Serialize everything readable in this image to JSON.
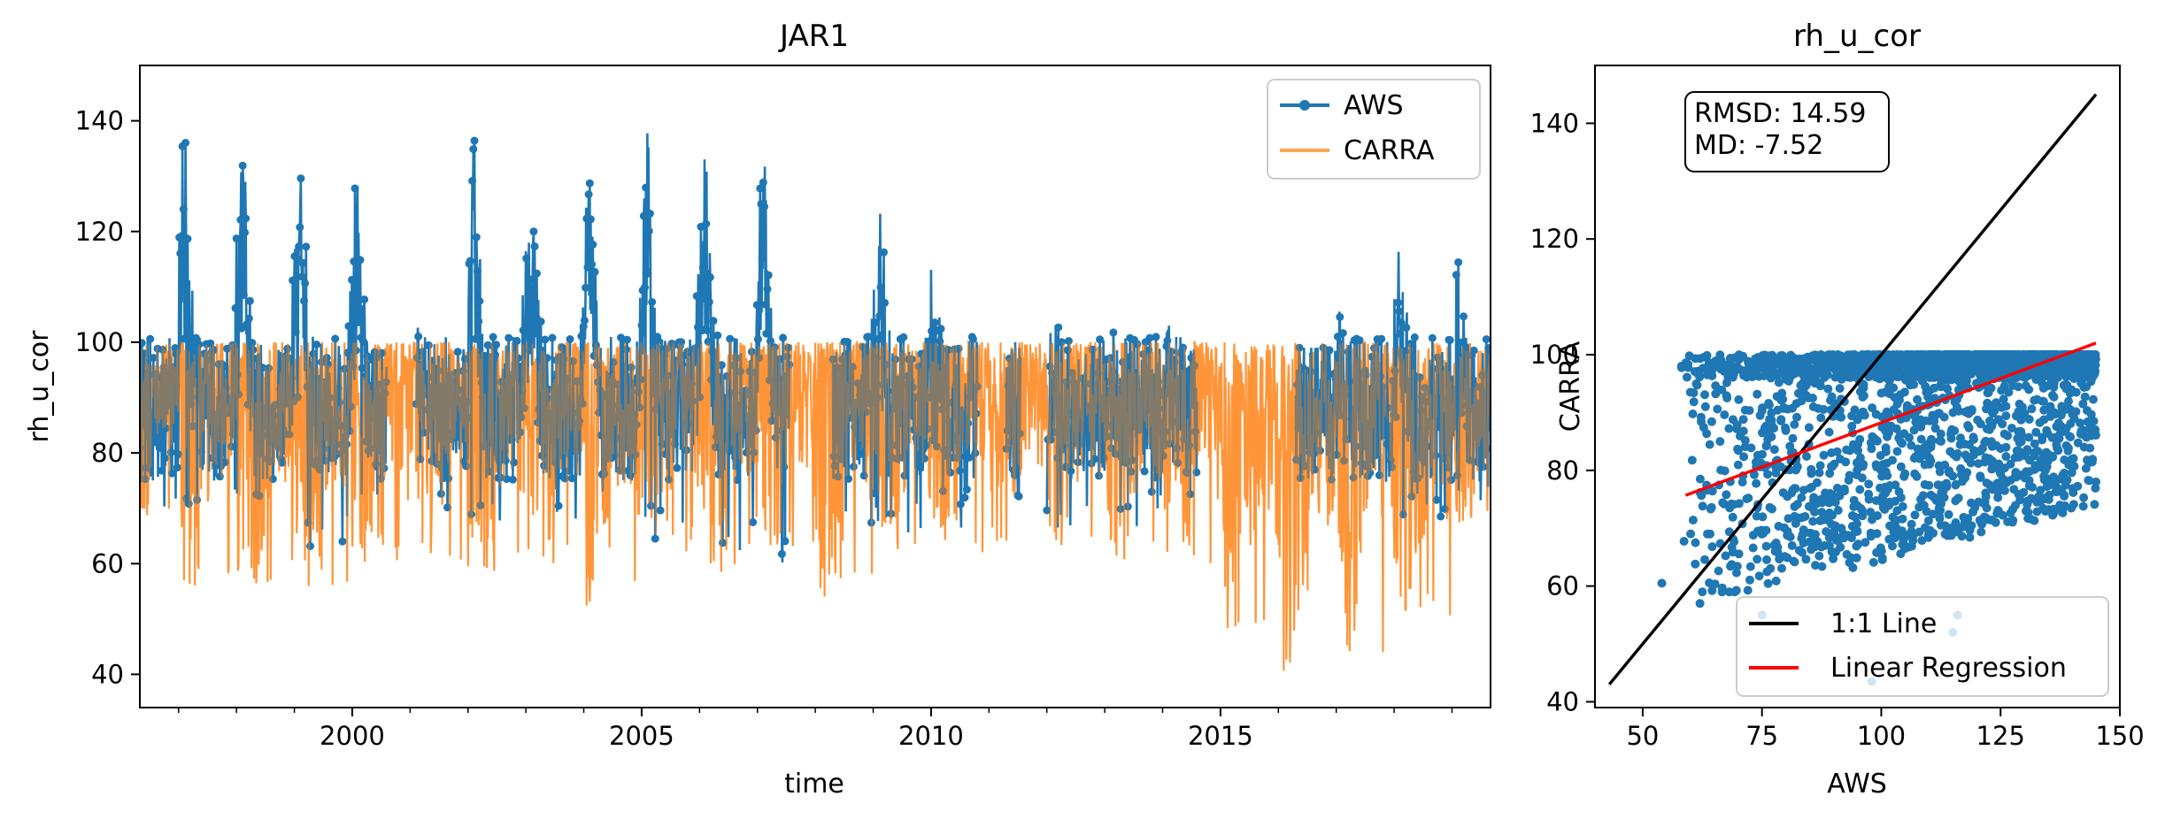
{
  "chart_data": [
    {
      "type": "line",
      "title": "JAR1",
      "xlabel": "time",
      "ylabel": "rh_u_cor",
      "xlim": [
        "1996-05-01",
        "2019-09-01"
      ],
      "ylim": [
        34,
        150
      ],
      "xticks": [
        "2000",
        "2005",
        "2010",
        "2015"
      ],
      "yticks": [
        40,
        60,
        80,
        100,
        120,
        140
      ],
      "legend": {
        "position": "top-right"
      },
      "colors": {
        "aws": "#1f77b4",
        "carra": "#ff7f0e"
      },
      "series": [
        {
          "name": "AWS",
          "marker": "circle",
          "yearly_envelope": [
            {
              "year": 1996,
              "min": 70,
              "max": 103
            },
            {
              "year": 1997,
              "min": 68,
              "max": 143
            },
            {
              "year": 1998,
              "min": 65,
              "max": 143
            },
            {
              "year": 1999,
              "min": 62,
              "max": 137
            },
            {
              "year": 2000,
              "min": 72,
              "max": 137
            },
            {
              "year": 2001,
              "min": 68,
              "max": 103
            },
            {
              "year": 2002,
              "min": 65,
              "max": 145
            },
            {
              "year": 2003,
              "min": 68,
              "max": 132
            },
            {
              "year": 2004,
              "min": 67,
              "max": 143
            },
            {
              "year": 2005,
              "min": 63,
              "max": 145
            },
            {
              "year": 2006,
              "min": 61,
              "max": 138
            },
            {
              "year": 2007,
              "min": 59,
              "max": 138
            },
            {
              "year": 2008,
              "min": 62,
              "max": 118
            },
            {
              "year": 2009,
              "min": 65,
              "max": 132
            },
            {
              "year": 2010,
              "min": 66,
              "max": 106
            },
            {
              "year": 2011,
              "min": 69,
              "max": 100
            },
            {
              "year": 2012,
              "min": 66,
              "max": 105
            },
            {
              "year": 2013,
              "min": 66,
              "max": 103
            },
            {
              "year": 2014,
              "min": 70,
              "max": 104
            },
            {
              "year": 2015,
              "min": 72,
              "max": 96
            },
            {
              "year": 2016,
              "min": 75,
              "max": 99
            },
            {
              "year": 2017,
              "min": 72,
              "max": 107
            },
            {
              "year": 2018,
              "min": 68,
              "max": 118
            },
            {
              "year": 2019,
              "min": 70,
              "max": 116
            }
          ]
        },
        {
          "name": "CARRA",
          "yearly_envelope": [
            {
              "year": 1996,
              "min": 66,
              "max": 100
            },
            {
              "year": 1997,
              "min": 55,
              "max": 100
            },
            {
              "year": 1998,
              "min": 56,
              "max": 100
            },
            {
              "year": 1999,
              "min": 55,
              "max": 100
            },
            {
              "year": 2000,
              "min": 60,
              "max": 100
            },
            {
              "year": 2001,
              "min": 58,
              "max": 100
            },
            {
              "year": 2002,
              "min": 58,
              "max": 100
            },
            {
              "year": 2003,
              "min": 60,
              "max": 100
            },
            {
              "year": 2004,
              "min": 52,
              "max": 100
            },
            {
              "year": 2005,
              "min": 61,
              "max": 100
            },
            {
              "year": 2006,
              "min": 58,
              "max": 100
            },
            {
              "year": 2007,
              "min": 60,
              "max": 100
            },
            {
              "year": 2008,
              "min": 54,
              "max": 100
            },
            {
              "year": 2009,
              "min": 60,
              "max": 100
            },
            {
              "year": 2010,
              "min": 62,
              "max": 100
            },
            {
              "year": 2011,
              "min": 62,
              "max": 100
            },
            {
              "year": 2012,
              "min": 61,
              "max": 100
            },
            {
              "year": 2013,
              "min": 60,
              "max": 100
            },
            {
              "year": 2014,
              "min": 60,
              "max": 100
            },
            {
              "year": 2015,
              "min": 47,
              "max": 100
            },
            {
              "year": 2016,
              "min": 39,
              "max": 100
            },
            {
              "year": 2017,
              "min": 43,
              "max": 100
            },
            {
              "year": 2018,
              "min": 50,
              "max": 100
            },
            {
              "year": 2019,
              "min": 65,
              "max": 100
            }
          ]
        }
      ]
    },
    {
      "type": "scatter",
      "title": "rh_u_cor",
      "xlabel": "AWS",
      "ylabel": "CARRA",
      "xlim": [
        40,
        150
      ],
      "ylim": [
        39,
        150
      ],
      "xticks": [
        50,
        75,
        100,
        125,
        150
      ],
      "yticks": [
        40,
        60,
        80,
        100,
        120,
        140
      ],
      "stats": {
        "rmsd": "RMSD: 14.59",
        "md": "MD: -7.52"
      },
      "legend": {
        "position": "lower-right"
      },
      "colors": {
        "points": "#1f77b4",
        "identity": "#000000",
        "regression": "#ff0000"
      },
      "lines": [
        {
          "name": "1:1 Line",
          "x": [
            43,
            145
          ],
          "y": [
            43,
            145
          ]
        },
        {
          "name": "Linear Regression",
          "x": [
            59,
            145
          ],
          "y": [
            75.7,
            102
          ]
        }
      ],
      "point_cloud": {
        "x_range": [
          58,
          145
        ],
        "y_range": [
          55,
          100
        ],
        "outliers": [
          {
            "x": 60,
            "y": 93.5
          },
          {
            "x": 54,
            "y": 60.5
          },
          {
            "x": 62,
            "y": 57
          },
          {
            "x": 75,
            "y": 55
          },
          {
            "x": 98,
            "y": 43.5
          },
          {
            "x": 116,
            "y": 55
          },
          {
            "x": 115,
            "y": 52
          },
          {
            "x": 144,
            "y": 86
          },
          {
            "x": 145,
            "y": 78
          }
        ]
      }
    }
  ]
}
